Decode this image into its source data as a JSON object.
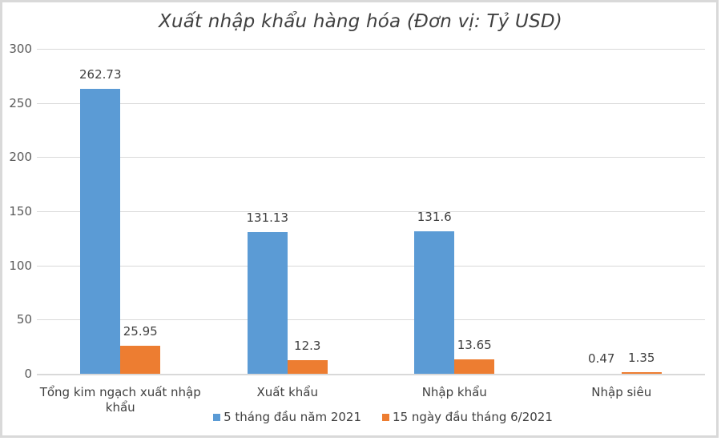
{
  "chart_data": {
    "type": "bar",
    "title": "Xuất nhập khẩu hàng hóa (Đơn vị: Tỷ USD)",
    "xlabel": "",
    "ylabel": "",
    "ylim": [
      0,
      300
    ],
    "yticks": [
      "0",
      "50",
      "100",
      "150",
      "200",
      "250",
      "300"
    ],
    "grid": true,
    "legend_position": "bottom",
    "categories": [
      "Tổng kim ngạch xuất nhập khẩu",
      "Xuất khẩu",
      "Nhập khẩu",
      "Nhập siêu"
    ],
    "series": [
      {
        "name": "5 tháng đầu năm 2021",
        "color": "#5b9bd5",
        "values": [
          262.73,
          131.13,
          131.6,
          0.47
        ],
        "labels": [
          "262.73",
          "131.13",
          "131.6",
          "0.47"
        ]
      },
      {
        "name": "15 ngày đầu tháng 6/2021",
        "color": "#ed7d31",
        "values": [
          25.95,
          12.3,
          13.65,
          1.35
        ],
        "labels": [
          "25.95",
          "12.3",
          "13.65",
          "1.35"
        ]
      }
    ]
  },
  "category_labels": [
    [
      "Tổng kim ngạch xuất nhập",
      "khẩu"
    ],
    [
      "Xuất khẩu"
    ],
    [
      "Nhập khẩu"
    ],
    [
      "Nhập siêu"
    ]
  ]
}
